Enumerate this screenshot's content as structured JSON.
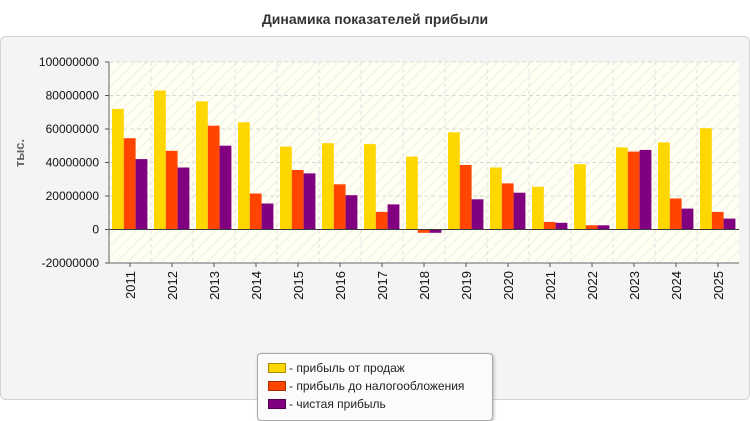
{
  "chart_data": {
    "type": "bar",
    "title": "Динамика показателей прибыли",
    "ylabel": "тыс.",
    "xlabel": "",
    "categories": [
      "2011",
      "2012",
      "2013",
      "2014",
      "2015",
      "2016",
      "2017",
      "2018",
      "2019",
      "2020",
      "2021",
      "2022",
      "2023",
      "2024",
      "2025"
    ],
    "ylim": [
      -20000000,
      100000000
    ],
    "yticks": [
      -20000000,
      0,
      20000000,
      40000000,
      60000000,
      80000000,
      100000000
    ],
    "ytick_labels": [
      "-20000000",
      "0",
      "20000000",
      "40000000",
      "60000000",
      "80000000",
      "100000000"
    ],
    "grid": true,
    "legend_position": "bottom-center",
    "series": [
      {
        "name": "- прибыль от продаж",
        "color": "#ffd700",
        "values": [
          72000000,
          83000000,
          76500000,
          64000000,
          49500000,
          51500000,
          51000000,
          43500000,
          58000000,
          37000000,
          25500000,
          39000000,
          49000000,
          52000000,
          60500000
        ]
      },
      {
        "name": "- прибыль до налогообложения",
        "color": "#ff4500",
        "values": [
          54500000,
          47000000,
          62000000,
          21500000,
          35500000,
          27000000,
          10500000,
          -2000000,
          38500000,
          27500000,
          4500000,
          2500000,
          46500000,
          18500000,
          10500000
        ]
      },
      {
        "name": "- чистая прибыль",
        "color": "#800080",
        "values": [
          42000000,
          37000000,
          50000000,
          15500000,
          33500000,
          20500000,
          15000000,
          -2000000,
          18000000,
          22000000,
          4000000,
          2500000,
          47500000,
          12500000,
          6500000
        ]
      }
    ]
  }
}
